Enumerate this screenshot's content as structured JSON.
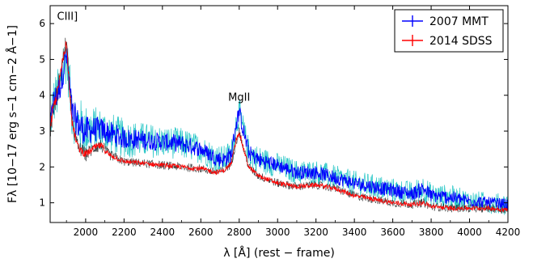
{
  "chart_data": {
    "type": "line",
    "xlabel": "λ [Å] (rest − frame)",
    "ylabel": "Fλ [10−17 erg s−1 cm−2 Å−1]",
    "xlim": [
      1815,
      4200
    ],
    "ylim": [
      0.45,
      6.5
    ],
    "xticks": [
      2000,
      2200,
      2400,
      2600,
      2800,
      3000,
      3200,
      3400,
      3600,
      3800,
      4000,
      4200
    ],
    "yticks": [
      1,
      2,
      3,
      4,
      5,
      6
    ],
    "grid": false,
    "legend_position": "top-right",
    "annotations": [
      {
        "text": "CIII]",
        "x": 1905,
        "y": 6.1
      },
      {
        "text": "MgII",
        "x": 2800,
        "y": 3.85
      }
    ],
    "series": [
      {
        "name": "2007 MMT",
        "color": "#0000ff",
        "noise_color": "#00bcbc",
        "x": [
          1815,
          1830,
          1850,
          1870,
          1890,
          1900,
          1910,
          1930,
          1960,
          2000,
          2050,
          2080,
          2120,
          2200,
          2300,
          2400,
          2500,
          2600,
          2680,
          2720,
          2760,
          2780,
          2800,
          2820,
          2850,
          2900,
          3000,
          3100,
          3200,
          3300,
          3400,
          3500,
          3600,
          3700,
          3760,
          3800,
          3900,
          4000,
          4100,
          4200
        ],
        "y": [
          3.1,
          3.8,
          4.0,
          4.3,
          4.9,
          5.1,
          4.6,
          3.5,
          3.2,
          3.0,
          3.05,
          3.05,
          2.95,
          2.8,
          2.75,
          2.7,
          2.65,
          2.5,
          2.25,
          2.2,
          2.35,
          3.1,
          3.55,
          3.05,
          2.4,
          2.2,
          2.05,
          1.85,
          1.85,
          1.7,
          1.55,
          1.45,
          1.35,
          1.25,
          1.4,
          1.2,
          1.15,
          1.05,
          1.0,
          0.95
        ],
        "spread": [
          0.55,
          0.65,
          0.7,
          0.7,
          0.75,
          0.75,
          0.7,
          0.75,
          0.8,
          0.75,
          0.65,
          0.6,
          0.6,
          0.55,
          0.5,
          0.45,
          0.45,
          0.4,
          0.4,
          0.4,
          0.45,
          0.45,
          0.4,
          0.45,
          0.4,
          0.4,
          0.35,
          0.35,
          0.35,
          0.35,
          0.35,
          0.35,
          0.35,
          0.35,
          0.4,
          0.35,
          0.35,
          0.3,
          0.3,
          0.3
        ]
      },
      {
        "name": "2014 SDSS",
        "color": "#ff0000",
        "noise_color": "#000000",
        "x": [
          1815,
          1830,
          1850,
          1870,
          1890,
          1900,
          1910,
          1930,
          1960,
          2000,
          2050,
          2080,
          2120,
          2200,
          2300,
          2400,
          2500,
          2600,
          2680,
          2720,
          2760,
          2780,
          2800,
          2820,
          2850,
          2900,
          3000,
          3100,
          3200,
          3300,
          3400,
          3500,
          3600,
          3700,
          3760,
          3800,
          3900,
          4000,
          4100,
          4200
        ],
        "y": [
          3.0,
          3.6,
          4.0,
          4.6,
          5.3,
          5.45,
          4.7,
          3.2,
          2.55,
          2.35,
          2.55,
          2.6,
          2.35,
          2.15,
          2.1,
          2.05,
          2.0,
          1.95,
          1.85,
          1.9,
          2.1,
          2.65,
          3.0,
          2.55,
          2.0,
          1.75,
          1.55,
          1.45,
          1.5,
          1.4,
          1.2,
          1.1,
          1.0,
          0.95,
          1.0,
          0.9,
          0.85,
          0.85,
          0.85,
          0.8
        ],
        "spread": [
          0.3,
          0.3,
          0.3,
          0.3,
          0.3,
          0.3,
          0.3,
          0.25,
          0.2,
          0.2,
          0.18,
          0.18,
          0.15,
          0.12,
          0.12,
          0.12,
          0.12,
          0.12,
          0.12,
          0.12,
          0.12,
          0.15,
          0.15,
          0.12,
          0.12,
          0.12,
          0.12,
          0.12,
          0.12,
          0.12,
          0.12,
          0.12,
          0.12,
          0.12,
          0.12,
          0.12,
          0.12,
          0.12,
          0.12,
          0.12
        ]
      }
    ]
  }
}
